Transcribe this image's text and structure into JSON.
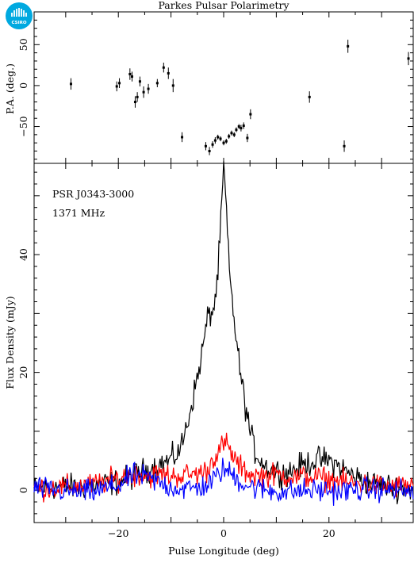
{
  "header": {
    "title": "Parkes Pulsar Polarimetry"
  },
  "logo": {
    "text": "CSIRO",
    "color": "#00a9e0"
  },
  "chart_data": [
    {
      "type": "scatter",
      "ylabel": "P.A. (deg.)",
      "xlim": [
        -36,
        36
      ],
      "ylim": [
        -95,
        90
      ],
      "yticks": [
        -50,
        0,
        50
      ],
      "marker_color": "#000000",
      "points": [
        {
          "x": -29.0,
          "y": 2,
          "e": 7
        },
        {
          "x": -20.3,
          "y": -1,
          "e": 6
        },
        {
          "x": -19.8,
          "y": 3,
          "e": 6
        },
        {
          "x": -17.8,
          "y": 14,
          "e": 7
        },
        {
          "x": -17.4,
          "y": 11,
          "e": 6
        },
        {
          "x": -16.8,
          "y": -20,
          "e": 7
        },
        {
          "x": -16.4,
          "y": -14,
          "e": 6
        },
        {
          "x": -15.9,
          "y": 5,
          "e": 6
        },
        {
          "x": -15.2,
          "y": -8,
          "e": 7
        },
        {
          "x": -14.3,
          "y": -4,
          "e": 6
        },
        {
          "x": -12.6,
          "y": 3,
          "e": 5
        },
        {
          "x": -11.4,
          "y": 22,
          "e": 6
        },
        {
          "x": -10.5,
          "y": 15,
          "e": 7
        },
        {
          "x": -9.6,
          "y": 0,
          "e": 8
        },
        {
          "x": -7.9,
          "y": -63,
          "e": 6
        },
        {
          "x": -3.4,
          "y": -74,
          "e": 5
        },
        {
          "x": -2.7,
          "y": -80,
          "e": 5
        },
        {
          "x": -2.1,
          "y": -72,
          "e": 4
        },
        {
          "x": -1.6,
          "y": -67,
          "e": 4
        },
        {
          "x": -1.1,
          "y": -63,
          "e": 3
        },
        {
          "x": -0.6,
          "y": -65,
          "e": 3
        },
        {
          "x": 0.0,
          "y": -70,
          "e": 3
        },
        {
          "x": 0.5,
          "y": -68,
          "e": 3
        },
        {
          "x": 1.0,
          "y": -62,
          "e": 3
        },
        {
          "x": 1.5,
          "y": -58,
          "e": 3
        },
        {
          "x": 2.0,
          "y": -60,
          "e": 3
        },
        {
          "x": 2.4,
          "y": -54,
          "e": 3
        },
        {
          "x": 2.9,
          "y": -50,
          "e": 3
        },
        {
          "x": 3.3,
          "y": -52,
          "e": 4
        },
        {
          "x": 3.8,
          "y": -49,
          "e": 4
        },
        {
          "x": 4.5,
          "y": -64,
          "e": 5
        },
        {
          "x": 5.1,
          "y": -35,
          "e": 6
        },
        {
          "x": 16.3,
          "y": -14,
          "e": 7
        },
        {
          "x": 22.9,
          "y": -74,
          "e": 7
        },
        {
          "x": 23.6,
          "y": 48,
          "e": 8
        },
        {
          "x": 35.1,
          "y": 33,
          "e": 8
        }
      ]
    },
    {
      "type": "line",
      "title": "PSR J0343-3000",
      "subtitle": "1371 MHz",
      "xlabel": "Pulse Longitude (deg)",
      "ylabel": "Flux Density (mJy)",
      "xlim": [
        -36,
        36
      ],
      "ylim": [
        -5.5,
        55.5
      ],
      "xticks": [
        -20,
        0,
        20
      ],
      "yticks": [
        0,
        20,
        40
      ],
      "grid": false,
      "series": [
        {
          "color": "#000000",
          "x": [
            -36,
            -32,
            -28,
            -24,
            -20,
            -18,
            -16,
            -14,
            -12,
            -10,
            -9,
            -8,
            -7,
            -6,
            -5,
            -4,
            -3,
            -2,
            -1.5,
            -1,
            -0.5,
            0,
            0.5,
            1,
            1.5,
            2,
            3,
            4,
            5,
            6,
            8,
            10,
            12,
            14,
            16,
            18,
            20,
            22,
            24,
            26,
            28,
            30,
            32,
            34,
            36
          ],
          "y": [
            0.2,
            0.6,
            0.5,
            0.9,
            1.4,
            2.1,
            2.9,
            3.6,
            4.4,
            5.2,
            6.0,
            7.5,
            11.0,
            15.0,
            19.0,
            24.0,
            29.5,
            30.5,
            33.0,
            38.0,
            46.0,
            55.0,
            48.0,
            38.0,
            33.0,
            29.0,
            21.0,
            15.0,
            10.0,
            6.5,
            4.0,
            3.2,
            3.0,
            3.8,
            4.6,
            5.2,
            5.0,
            4.0,
            2.8,
            1.8,
            1.2,
            0.8,
            0.6,
            0.3,
            0.0
          ]
        },
        {
          "color": "#ff0000",
          "x": [
            -36,
            -30,
            -25,
            -20,
            -18,
            -16,
            -14,
            -12,
            -10,
            -8,
            -6,
            -4,
            -3,
            -2,
            -1,
            0,
            0.5,
            1,
            2,
            3,
            4,
            6,
            8,
            10,
            12,
            14,
            16,
            18,
            20,
            24,
            28,
            32,
            36
          ],
          "y": [
            0.3,
            0.5,
            0.9,
            2.0,
            2.5,
            2.8,
            2.4,
            2.7,
            2.4,
            2.5,
            2.7,
            3.0,
            3.4,
            5.5,
            6.5,
            7.8,
            8.0,
            6.8,
            5.5,
            4.0,
            3.2,
            2.5,
            2.5,
            2.6,
            2.4,
            2.2,
            2.3,
            2.1,
            1.8,
            1.2,
            0.9,
            0.6,
            0.8
          ]
        },
        {
          "color": "#0000ff",
          "x": [
            -36,
            -30,
            -25,
            -20,
            -17,
            -15,
            -12,
            -10,
            -8,
            -6,
            -4,
            -3,
            -2,
            -1,
            0,
            1,
            2,
            3,
            4,
            6,
            8,
            10,
            12,
            15,
            18,
            22,
            26,
            30,
            33,
            36
          ],
          "y": [
            0.4,
            -0.2,
            -0.3,
            0.8,
            2.6,
            2.2,
            1.2,
            0.5,
            0.2,
            0.3,
            0.6,
            1.0,
            1.6,
            2.8,
            3.6,
            3.0,
            2.5,
            1.6,
            1.0,
            0.4,
            0.0,
            -0.2,
            -0.3,
            -0.1,
            0.0,
            -0.2,
            0.1,
            0.2,
            0.0,
            -0.3
          ]
        }
      ]
    }
  ]
}
